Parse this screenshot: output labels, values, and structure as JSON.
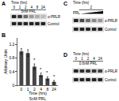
{
  "chart_data": {
    "type": "bar",
    "panel": "B",
    "categories": [
      "0",
      "1",
      "2",
      "4",
      "8",
      "24"
    ],
    "values": [
      1.0,
      0.95,
      0.55,
      0.3,
      0.2,
      0.1
    ],
    "errors": [
      0.08,
      0.1,
      0.08,
      0.06,
      0.05,
      0.04
    ],
    "significance": [
      null,
      null,
      "*",
      "*",
      "*",
      "*"
    ],
    "color": "#444444",
    "y_label": "Arbitrary Units",
    "x_label": "Time (hrs)",
    "treatment": "5nM PRL",
    "ylim": [
      0,
      1.4
    ],
    "yticks": [
      0,
      0.4,
      0.8,
      1.2
    ],
    "grid": false
  },
  "blots": [
    {
      "panel": "A",
      "time_label": "Time (hrs)",
      "lanes": [
        "0",
        "1",
        "2",
        "4",
        "8",
        "24"
      ],
      "treatment": "5nM PRL",
      "rows": [
        {
          "label": "α-PRLR",
          "intensity": [
            1,
            0.9,
            0.6,
            0.35,
            0.25,
            0.15
          ]
        },
        {
          "label": "Control",
          "intensity": [
            1,
            1,
            1,
            1,
            1,
            1
          ]
        }
      ]
    },
    {
      "panel": "C",
      "time_label": "Time (hrs)",
      "time_value": "2",
      "treatment": "PRL",
      "rows": [
        {
          "label": "α-PRLR",
          "intensity": [
            1,
            0.8,
            0.6,
            0.45,
            0.35
          ]
        },
        {
          "label": "Control",
          "intensity": [
            1,
            1,
            1,
            1,
            1
          ]
        }
      ]
    },
    {
      "panel": "D",
      "time_label": "Time (hrs)",
      "lanes": [
        "0",
        "1",
        "2",
        "4",
        "24"
      ],
      "treatment": "0.6nM PRL",
      "rows": [
        {
          "label": "α-PRLR",
          "intensity": [
            1,
            0.95,
            0.9,
            0.9,
            0.85
          ]
        },
        {
          "label": "Control",
          "intensity": [
            1,
            1,
            1,
            1,
            1
          ]
        }
      ]
    }
  ]
}
